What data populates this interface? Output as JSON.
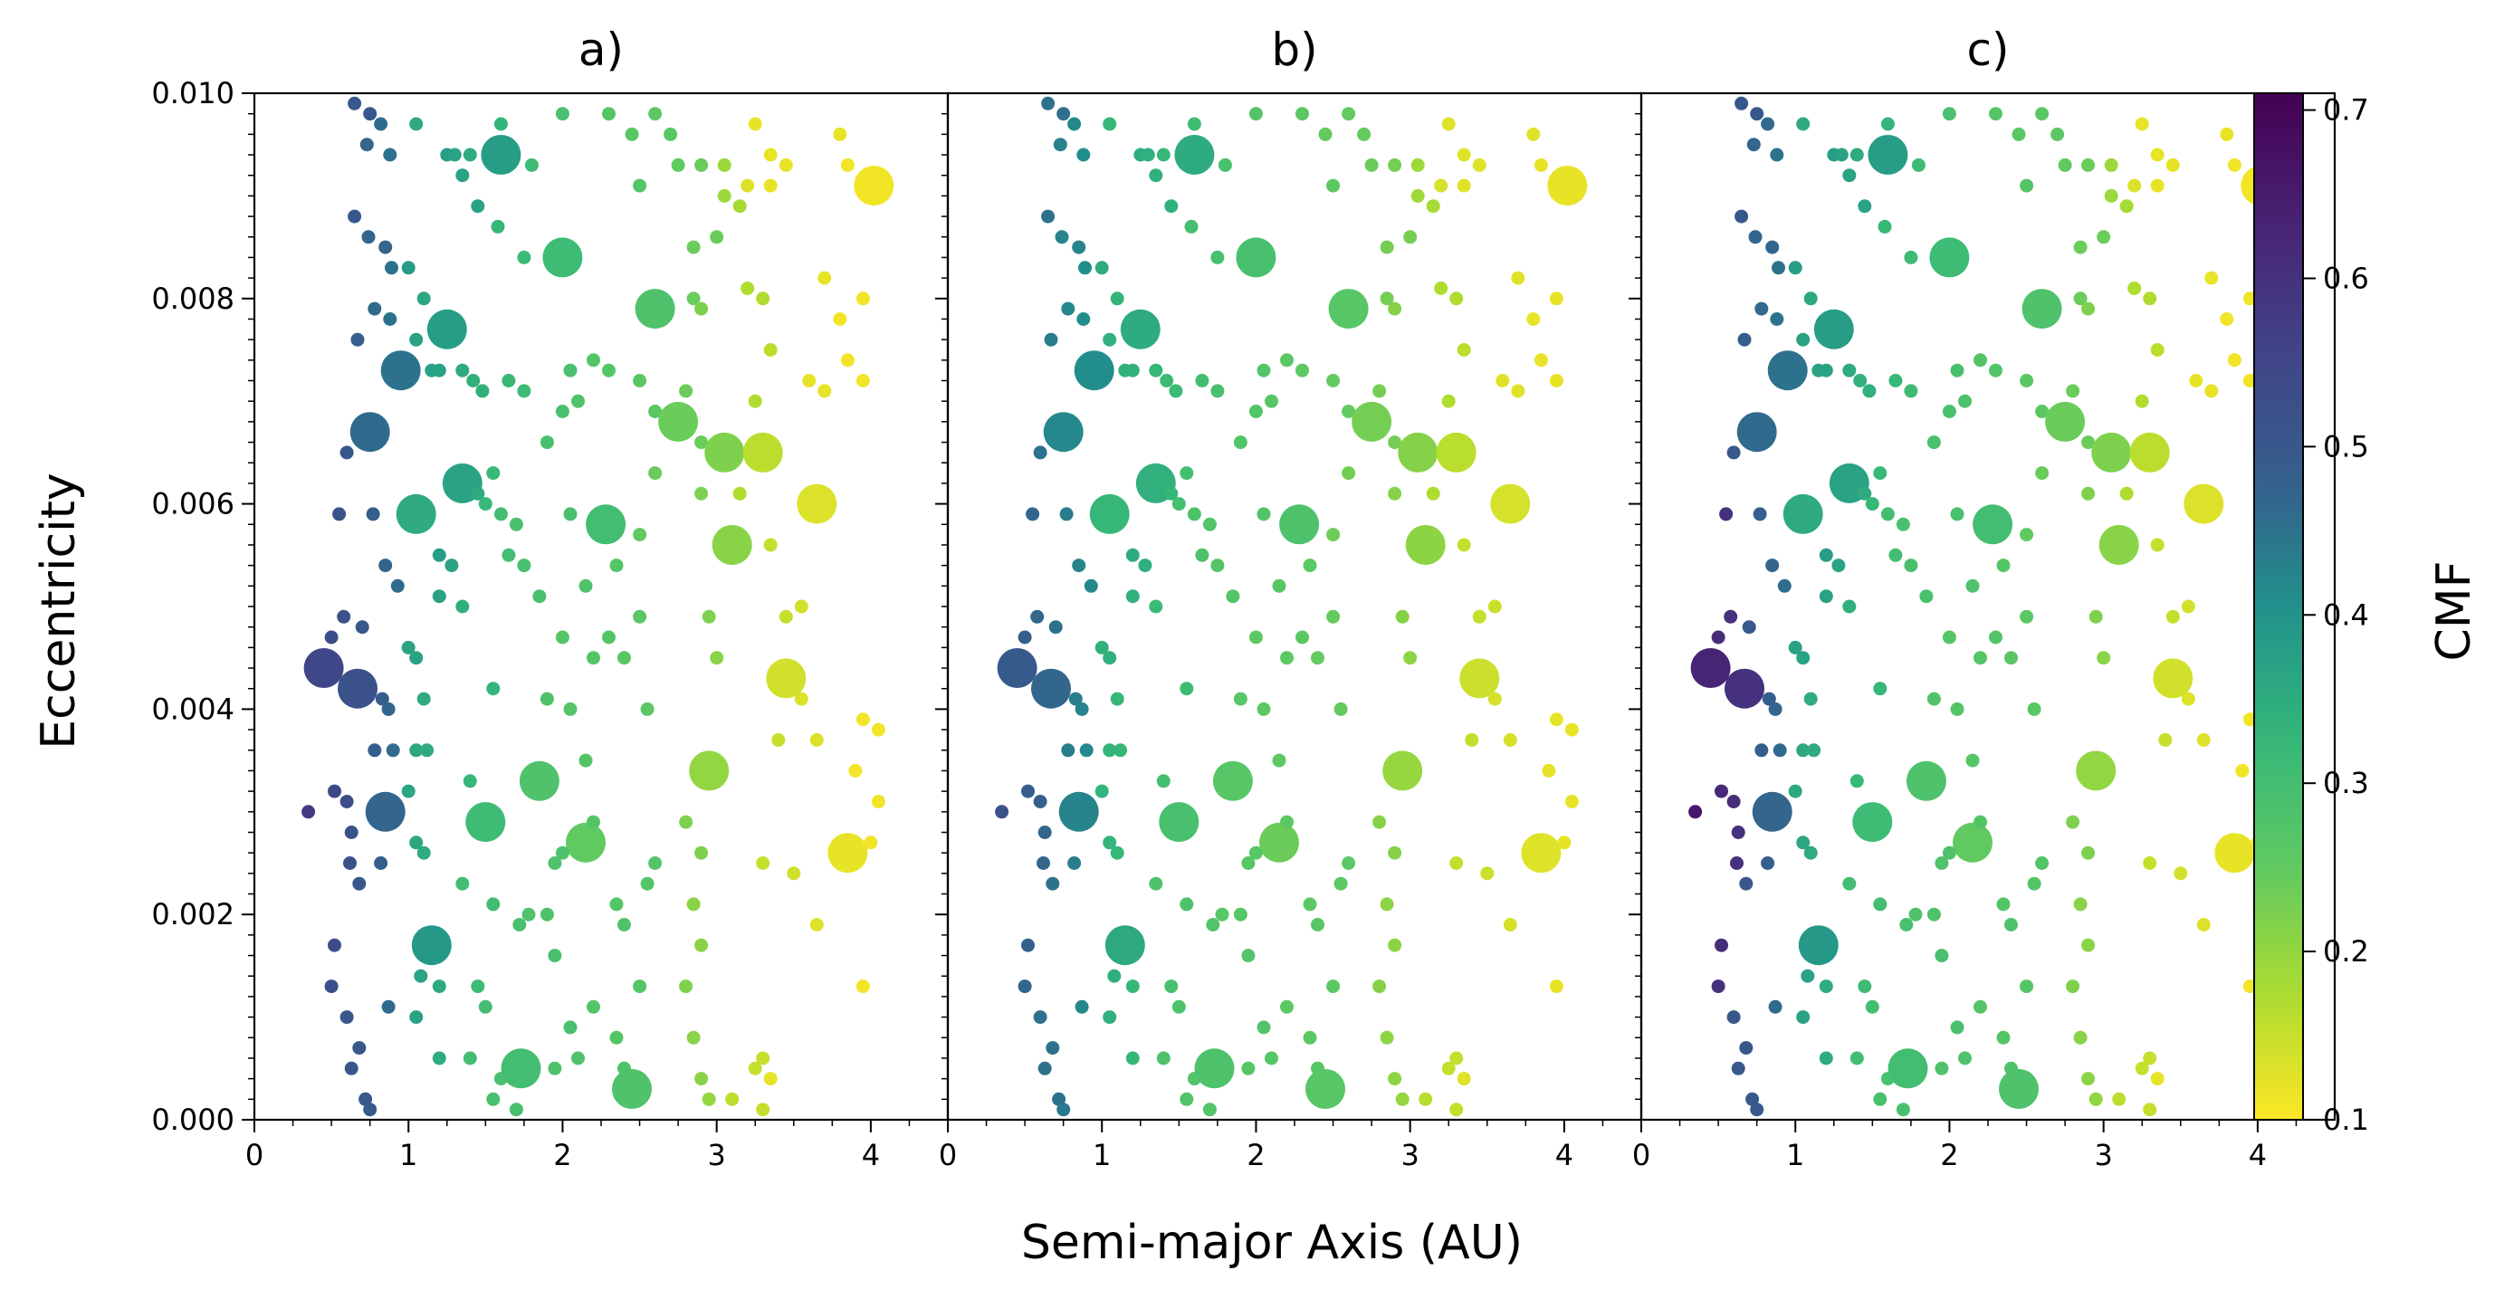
{
  "figure": {
    "xlabel": "Semi-major Axis (AU)",
    "ylabel": "Eccentricity",
    "colorbar": {
      "label": "CMF",
      "range": [
        0.1,
        0.71
      ],
      "ticks": [
        "0.1",
        "0.2",
        "0.3",
        "0.4",
        "0.5",
        "0.6",
        "0.7"
      ],
      "colormap": "viridis-reversed"
    }
  },
  "chart_data": [
    {
      "type": "scatter",
      "title": "a)",
      "xlim": [
        0,
        4.5
      ],
      "ylim": [
        0,
        0.01
      ],
      "xticks": [
        "0",
        "1",
        "2",
        "3",
        "4"
      ],
      "yticks": [
        "0.000",
        "0.002",
        "0.004",
        "0.006",
        "0.008",
        "0.010"
      ],
      "size_scale": "planet mass (marker area)",
      "color_by": "CMF"
    },
    {
      "type": "scatter",
      "title": "b)",
      "xlim": [
        0,
        4.5
      ],
      "ylim": [
        0,
        0.01
      ],
      "xticks": [
        "0",
        "1",
        "2",
        "3",
        "4"
      ],
      "size_scale": "planet mass (marker area)",
      "color_by": "CMF"
    },
    {
      "type": "scatter",
      "title": "c)",
      "xlim": [
        0,
        4.5
      ],
      "ylim": [
        0,
        0.01
      ],
      "xticks": [
        "0",
        "1",
        "2",
        "3",
        "4"
      ],
      "size_scale": "planet mass (marker area)",
      "color_by": "CMF"
    }
  ],
  "points": [
    [
      0.65,
      0.0099,
      0.5,
      "s"
    ],
    [
      0.75,
      0.0098,
      0.5,
      "s"
    ],
    [
      0.82,
      0.0097,
      0.46,
      "s"
    ],
    [
      0.73,
      0.0095,
      0.47,
      "s"
    ],
    [
      0.88,
      0.0094,
      0.45,
      "s"
    ],
    [
      0.65,
      0.0088,
      0.5,
      "s"
    ],
    [
      0.74,
      0.0086,
      0.47,
      "s"
    ],
    [
      0.85,
      0.0085,
      0.47,
      "s"
    ],
    [
      0.89,
      0.0083,
      0.45,
      "s"
    ],
    [
      0.78,
      0.0079,
      0.46,
      "s"
    ],
    [
      0.88,
      0.0078,
      0.45,
      "s"
    ],
    [
      0.67,
      0.0076,
      0.48,
      "s"
    ],
    [
      0.95,
      0.0073,
      0.45,
      "L"
    ],
    [
      0.75,
      0.0067,
      0.46,
      "L"
    ],
    [
      0.6,
      0.0065,
      0.5,
      "s"
    ],
    [
      0.55,
      0.0059,
      0.52,
      "s"
    ],
    [
      0.77,
      0.0059,
      0.48,
      "s"
    ],
    [
      0.85,
      0.0054,
      0.47,
      "s"
    ],
    [
      0.93,
      0.0052,
      0.46,
      "s"
    ],
    [
      0.58,
      0.0049,
      0.52,
      "s"
    ],
    [
      0.5,
      0.0047,
      0.53,
      "s"
    ],
    [
      0.7,
      0.0048,
      0.5,
      "s"
    ],
    [
      0.45,
      0.0044,
      0.55,
      "L"
    ],
    [
      0.67,
      0.0042,
      0.52,
      "L"
    ],
    [
      0.83,
      0.0041,
      0.48,
      "s"
    ],
    [
      0.87,
      0.004,
      0.47,
      "s"
    ],
    [
      0.78,
      0.0036,
      0.48,
      "s"
    ],
    [
      0.9,
      0.0036,
      0.46,
      "s"
    ],
    [
      0.52,
      0.0032,
      0.54,
      "s"
    ],
    [
      0.6,
      0.0031,
      0.53,
      "s"
    ],
    [
      0.35,
      0.003,
      0.58,
      "s"
    ],
    [
      0.85,
      0.003,
      0.47,
      "L"
    ],
    [
      0.63,
      0.0028,
      0.52,
      "s"
    ],
    [
      0.62,
      0.0025,
      0.52,
      "s"
    ],
    [
      0.82,
      0.0025,
      0.48,
      "s"
    ],
    [
      0.68,
      0.0023,
      0.5,
      "s"
    ],
    [
      0.52,
      0.0017,
      0.53,
      "s"
    ],
    [
      0.5,
      0.0013,
      0.52,
      "s"
    ],
    [
      0.6,
      0.001,
      0.5,
      "s"
    ],
    [
      0.87,
      0.0011,
      0.46,
      "s"
    ],
    [
      0.68,
      0.0007,
      0.5,
      "s"
    ],
    [
      0.63,
      0.0005,
      0.5,
      "s"
    ],
    [
      0.72,
      0.0002,
      0.5,
      "s"
    ],
    [
      0.75,
      0.0001,
      0.49,
      "s"
    ],
    [
      1.05,
      0.0097,
      0.35,
      "s"
    ],
    [
      1.25,
      0.0094,
      0.38,
      "s"
    ],
    [
      1.3,
      0.0094,
      0.37,
      "s"
    ],
    [
      1.35,
      0.0092,
      0.37,
      "s"
    ],
    [
      1.4,
      0.0094,
      0.35,
      "s"
    ],
    [
      1.45,
      0.0089,
      0.37,
      "s"
    ],
    [
      1.0,
      0.0083,
      0.38,
      "s"
    ],
    [
      1.1,
      0.008,
      0.36,
      "s"
    ],
    [
      1.25,
      0.0077,
      0.38,
      "L"
    ],
    [
      1.05,
      0.0076,
      0.37,
      "s"
    ],
    [
      1.15,
      0.0073,
      0.37,
      "s"
    ],
    [
      1.2,
      0.0073,
      0.37,
      "s"
    ],
    [
      1.35,
      0.0073,
      0.35,
      "s"
    ],
    [
      1.42,
      0.0072,
      0.34,
      "s"
    ],
    [
      1.48,
      0.0071,
      0.34,
      "s"
    ],
    [
      1.35,
      0.0062,
      0.37,
      "L"
    ],
    [
      1.05,
      0.0059,
      0.35,
      "L"
    ],
    [
      1.45,
      0.0061,
      0.35,
      "s"
    ],
    [
      1.2,
      0.0055,
      0.38,
      "s"
    ],
    [
      1.28,
      0.0054,
      0.37,
      "s"
    ],
    [
      1.2,
      0.0051,
      0.37,
      "s"
    ],
    [
      1.35,
      0.005,
      0.34,
      "s"
    ],
    [
      1.0,
      0.0046,
      0.37,
      "s"
    ],
    [
      1.05,
      0.0045,
      0.37,
      "s"
    ],
    [
      1.1,
      0.0041,
      0.35,
      "s"
    ],
    [
      1.05,
      0.0036,
      0.36,
      "s"
    ],
    [
      1.12,
      0.0036,
      0.35,
      "s"
    ],
    [
      1.0,
      0.0032,
      0.36,
      "s"
    ],
    [
      1.05,
      0.0027,
      0.36,
      "s"
    ],
    [
      1.1,
      0.0026,
      0.35,
      "s"
    ],
    [
      1.15,
      0.0017,
      0.39,
      "L"
    ],
    [
      1.08,
      0.0014,
      0.37,
      "s"
    ],
    [
      1.2,
      0.0013,
      0.35,
      "s"
    ],
    [
      1.05,
      0.001,
      0.37,
      "s"
    ],
    [
      1.2,
      0.0006,
      0.35,
      "s"
    ],
    [
      1.6,
      0.0094,
      0.38,
      "L"
    ],
    [
      1.6,
      0.0097,
      0.33,
      "s"
    ],
    [
      1.58,
      0.0087,
      0.32,
      "s"
    ],
    [
      1.75,
      0.0084,
      0.31,
      "s"
    ],
    [
      1.8,
      0.0093,
      0.31,
      "s"
    ],
    [
      1.65,
      0.0072,
      0.32,
      "s"
    ],
    [
      1.75,
      0.0071,
      0.31,
      "s"
    ],
    [
      1.55,
      0.0063,
      0.32,
      "s"
    ],
    [
      1.5,
      0.006,
      0.32,
      "s"
    ],
    [
      1.6,
      0.0059,
      0.3,
      "s"
    ],
    [
      1.7,
      0.0058,
      0.29,
      "s"
    ],
    [
      1.65,
      0.0055,
      0.3,
      "s"
    ],
    [
      1.75,
      0.0054,
      0.29,
      "s"
    ],
    [
      1.55,
      0.0042,
      0.33,
      "s"
    ],
    [
      1.5,
      0.0029,
      0.31,
      "L"
    ],
    [
      1.4,
      0.0033,
      0.32,
      "s"
    ],
    [
      1.35,
      0.0023,
      0.3,
      "s"
    ],
    [
      1.55,
      0.0021,
      0.3,
      "s"
    ],
    [
      1.45,
      0.0013,
      0.31,
      "s"
    ],
    [
      1.5,
      0.0011,
      0.3,
      "s"
    ],
    [
      1.4,
      0.0006,
      0.3,
      "s"
    ],
    [
      1.6,
      0.0004,
      0.29,
      "s"
    ],
    [
      1.73,
      0.0005,
      0.3,
      "L"
    ],
    [
      1.7,
      0.0001,
      0.29,
      "s"
    ],
    [
      1.55,
      0.0002,
      0.29,
      "s"
    ],
    [
      1.85,
      0.0033,
      0.28,
      "L"
    ],
    [
      1.72,
      0.0019,
      0.29,
      "s"
    ],
    [
      1.78,
      0.002,
      0.28,
      "s"
    ],
    [
      2.0,
      0.0084,
      0.31,
      "L"
    ],
    [
      2.0,
      0.0098,
      0.29,
      "s"
    ],
    [
      2.05,
      0.0073,
      0.29,
      "s"
    ],
    [
      2.0,
      0.0069,
      0.29,
      "s"
    ],
    [
      2.1,
      0.007,
      0.28,
      "s"
    ],
    [
      2.2,
      0.0074,
      0.27,
      "s"
    ],
    [
      2.3,
      0.0073,
      0.27,
      "s"
    ],
    [
      1.9,
      0.0066,
      0.29,
      "s"
    ],
    [
      2.05,
      0.0059,
      0.29,
      "s"
    ],
    [
      2.28,
      0.0058,
      0.3,
      "L"
    ],
    [
      1.85,
      0.0051,
      0.29,
      "s"
    ],
    [
      2.15,
      0.0052,
      0.28,
      "s"
    ],
    [
      2.0,
      0.0047,
      0.27,
      "s"
    ],
    [
      2.2,
      0.0045,
      0.27,
      "s"
    ],
    [
      1.9,
      0.0041,
      0.28,
      "s"
    ],
    [
      2.05,
      0.004,
      0.27,
      "s"
    ],
    [
      2.15,
      0.0035,
      0.27,
      "s"
    ],
    [
      2.1,
      0.0028,
      0.27,
      "s"
    ],
    [
      2.15,
      0.0027,
      0.25,
      "L"
    ],
    [
      2.0,
      0.0026,
      0.28,
      "s"
    ],
    [
      2.2,
      0.0029,
      0.27,
      "s"
    ],
    [
      1.95,
      0.0025,
      0.28,
      "s"
    ],
    [
      1.9,
      0.002,
      0.28,
      "s"
    ],
    [
      1.95,
      0.0016,
      0.29,
      "s"
    ],
    [
      2.05,
      0.0009,
      0.29,
      "s"
    ],
    [
      2.1,
      0.0006,
      0.28,
      "s"
    ],
    [
      1.95,
      0.0005,
      0.28,
      "s"
    ],
    [
      2.2,
      0.0011,
      0.27,
      "s"
    ],
    [
      2.3,
      0.0098,
      0.27,
      "s"
    ],
    [
      2.45,
      0.0096,
      0.26,
      "s"
    ],
    [
      2.6,
      0.0098,
      0.26,
      "s"
    ],
    [
      2.5,
      0.0091,
      0.27,
      "s"
    ],
    [
      2.6,
      0.0079,
      0.28,
      "L"
    ],
    [
      2.5,
      0.0072,
      0.26,
      "s"
    ],
    [
      2.6,
      0.0069,
      0.26,
      "s"
    ],
    [
      2.75,
      0.0068,
      0.24,
      "L"
    ],
    [
      2.6,
      0.0063,
      0.24,
      "s"
    ],
    [
      2.5,
      0.0057,
      0.25,
      "s"
    ],
    [
      2.35,
      0.0054,
      0.27,
      "s"
    ],
    [
      2.5,
      0.0049,
      0.26,
      "s"
    ],
    [
      2.3,
      0.0047,
      0.27,
      "s"
    ],
    [
      2.4,
      0.0045,
      0.26,
      "s"
    ],
    [
      2.55,
      0.004,
      0.26,
      "s"
    ],
    [
      2.55,
      0.0023,
      0.27,
      "s"
    ],
    [
      2.6,
      0.0025,
      0.27,
      "s"
    ],
    [
      2.35,
      0.0021,
      0.27,
      "s"
    ],
    [
      2.4,
      0.0019,
      0.28,
      "s"
    ],
    [
      2.5,
      0.0013,
      0.27,
      "s"
    ],
    [
      2.45,
      0.0003,
      0.28,
      "L"
    ],
    [
      2.35,
      0.0008,
      0.27,
      "s"
    ],
    [
      2.4,
      0.0005,
      0.28,
      "s"
    ],
    [
      2.7,
      0.0096,
      0.26,
      "s"
    ],
    [
      2.75,
      0.0093,
      0.25,
      "s"
    ],
    [
      2.9,
      0.0093,
      0.24,
      "s"
    ],
    [
      3.0,
      0.0086,
      0.24,
      "s"
    ],
    [
      2.85,
      0.0085,
      0.24,
      "s"
    ],
    [
      2.85,
      0.008,
      0.24,
      "s"
    ],
    [
      2.9,
      0.0079,
      0.22,
      "s"
    ],
    [
      2.8,
      0.0071,
      0.24,
      "s"
    ],
    [
      2.9,
      0.0066,
      0.24,
      "s"
    ],
    [
      3.05,
      0.0065,
      0.22,
      "L"
    ],
    [
      2.9,
      0.0061,
      0.22,
      "s"
    ],
    [
      3.1,
      0.0056,
      0.21,
      "L"
    ],
    [
      2.95,
      0.0049,
      0.22,
      "s"
    ],
    [
      3.0,
      0.0045,
      0.21,
      "s"
    ],
    [
      2.95,
      0.0034,
      0.2,
      "L"
    ],
    [
      2.8,
      0.0029,
      0.22,
      "s"
    ],
    [
      2.9,
      0.0026,
      0.22,
      "s"
    ],
    [
      2.85,
      0.0021,
      0.21,
      "s"
    ],
    [
      2.9,
      0.0017,
      0.21,
      "s"
    ],
    [
      2.8,
      0.0013,
      0.22,
      "s"
    ],
    [
      2.85,
      0.0008,
      0.21,
      "s"
    ],
    [
      2.9,
      0.0004,
      0.21,
      "s"
    ],
    [
      2.95,
      0.0002,
      0.2,
      "s"
    ],
    [
      3.05,
      0.0093,
      0.19,
      "s"
    ],
    [
      3.05,
      0.009,
      0.19,
      "s"
    ],
    [
      3.15,
      0.0089,
      0.18,
      "s"
    ],
    [
      3.2,
      0.0081,
      0.17,
      "s"
    ],
    [
      3.3,
      0.008,
      0.17,
      "s"
    ],
    [
      3.35,
      0.0075,
      0.16,
      "s"
    ],
    [
      3.25,
      0.007,
      0.17,
      "s"
    ],
    [
      3.3,
      0.0065,
      0.16,
      "L"
    ],
    [
      3.65,
      0.006,
      0.13,
      "L"
    ],
    [
      3.15,
      0.0061,
      0.17,
      "s"
    ],
    [
      3.35,
      0.0056,
      0.15,
      "s"
    ],
    [
      3.45,
      0.0049,
      0.15,
      "s"
    ],
    [
      3.55,
      0.005,
      0.14,
      "s"
    ],
    [
      3.45,
      0.0043,
      0.14,
      "L"
    ],
    [
      3.4,
      0.0037,
      0.15,
      "s"
    ],
    [
      3.55,
      0.0041,
      0.13,
      "s"
    ],
    [
      3.65,
      0.0037,
      0.13,
      "s"
    ],
    [
      3.3,
      0.0025,
      0.15,
      "s"
    ],
    [
      3.5,
      0.0024,
      0.14,
      "s"
    ],
    [
      3.85,
      0.0026,
      0.12,
      "L"
    ],
    [
      3.65,
      0.0019,
      0.13,
      "s"
    ],
    [
      3.3,
      0.0006,
      0.15,
      "s"
    ],
    [
      3.25,
      0.0005,
      0.15,
      "s"
    ],
    [
      3.3,
      0.0001,
      0.15,
      "s"
    ],
    [
      3.1,
      0.0002,
      0.16,
      "s"
    ],
    [
      3.25,
      0.0097,
      0.12,
      "s"
    ],
    [
      3.35,
      0.0094,
      0.12,
      "s"
    ],
    [
      3.2,
      0.0091,
      0.13,
      "s"
    ],
    [
      3.35,
      0.0091,
      0.12,
      "s"
    ],
    [
      3.45,
      0.0093,
      0.12,
      "s"
    ],
    [
      3.8,
      0.0096,
      0.12,
      "s"
    ],
    [
      3.85,
      0.0093,
      0.11,
      "s"
    ],
    [
      4.02,
      0.0091,
      0.11,
      "L"
    ],
    [
      3.7,
      0.0082,
      0.12,
      "s"
    ],
    [
      3.95,
      0.008,
      0.11,
      "s"
    ],
    [
      3.8,
      0.0078,
      0.11,
      "s"
    ],
    [
      3.85,
      0.0074,
      0.11,
      "s"
    ],
    [
      3.6,
      0.0072,
      0.12,
      "s"
    ],
    [
      3.7,
      0.0071,
      0.12,
      "s"
    ],
    [
      3.95,
      0.0072,
      0.11,
      "s"
    ],
    [
      3.95,
      0.0039,
      0.11,
      "s"
    ],
    [
      4.05,
      0.0038,
      0.11,
      "s"
    ],
    [
      3.9,
      0.0034,
      0.11,
      "s"
    ],
    [
      4.05,
      0.0031,
      0.11,
      "s"
    ],
    [
      4.0,
      0.0027,
      0.11,
      "s"
    ],
    [
      3.95,
      0.0013,
      0.11,
      "s"
    ],
    [
      3.35,
      0.0004,
      0.12,
      "s"
    ]
  ]
}
